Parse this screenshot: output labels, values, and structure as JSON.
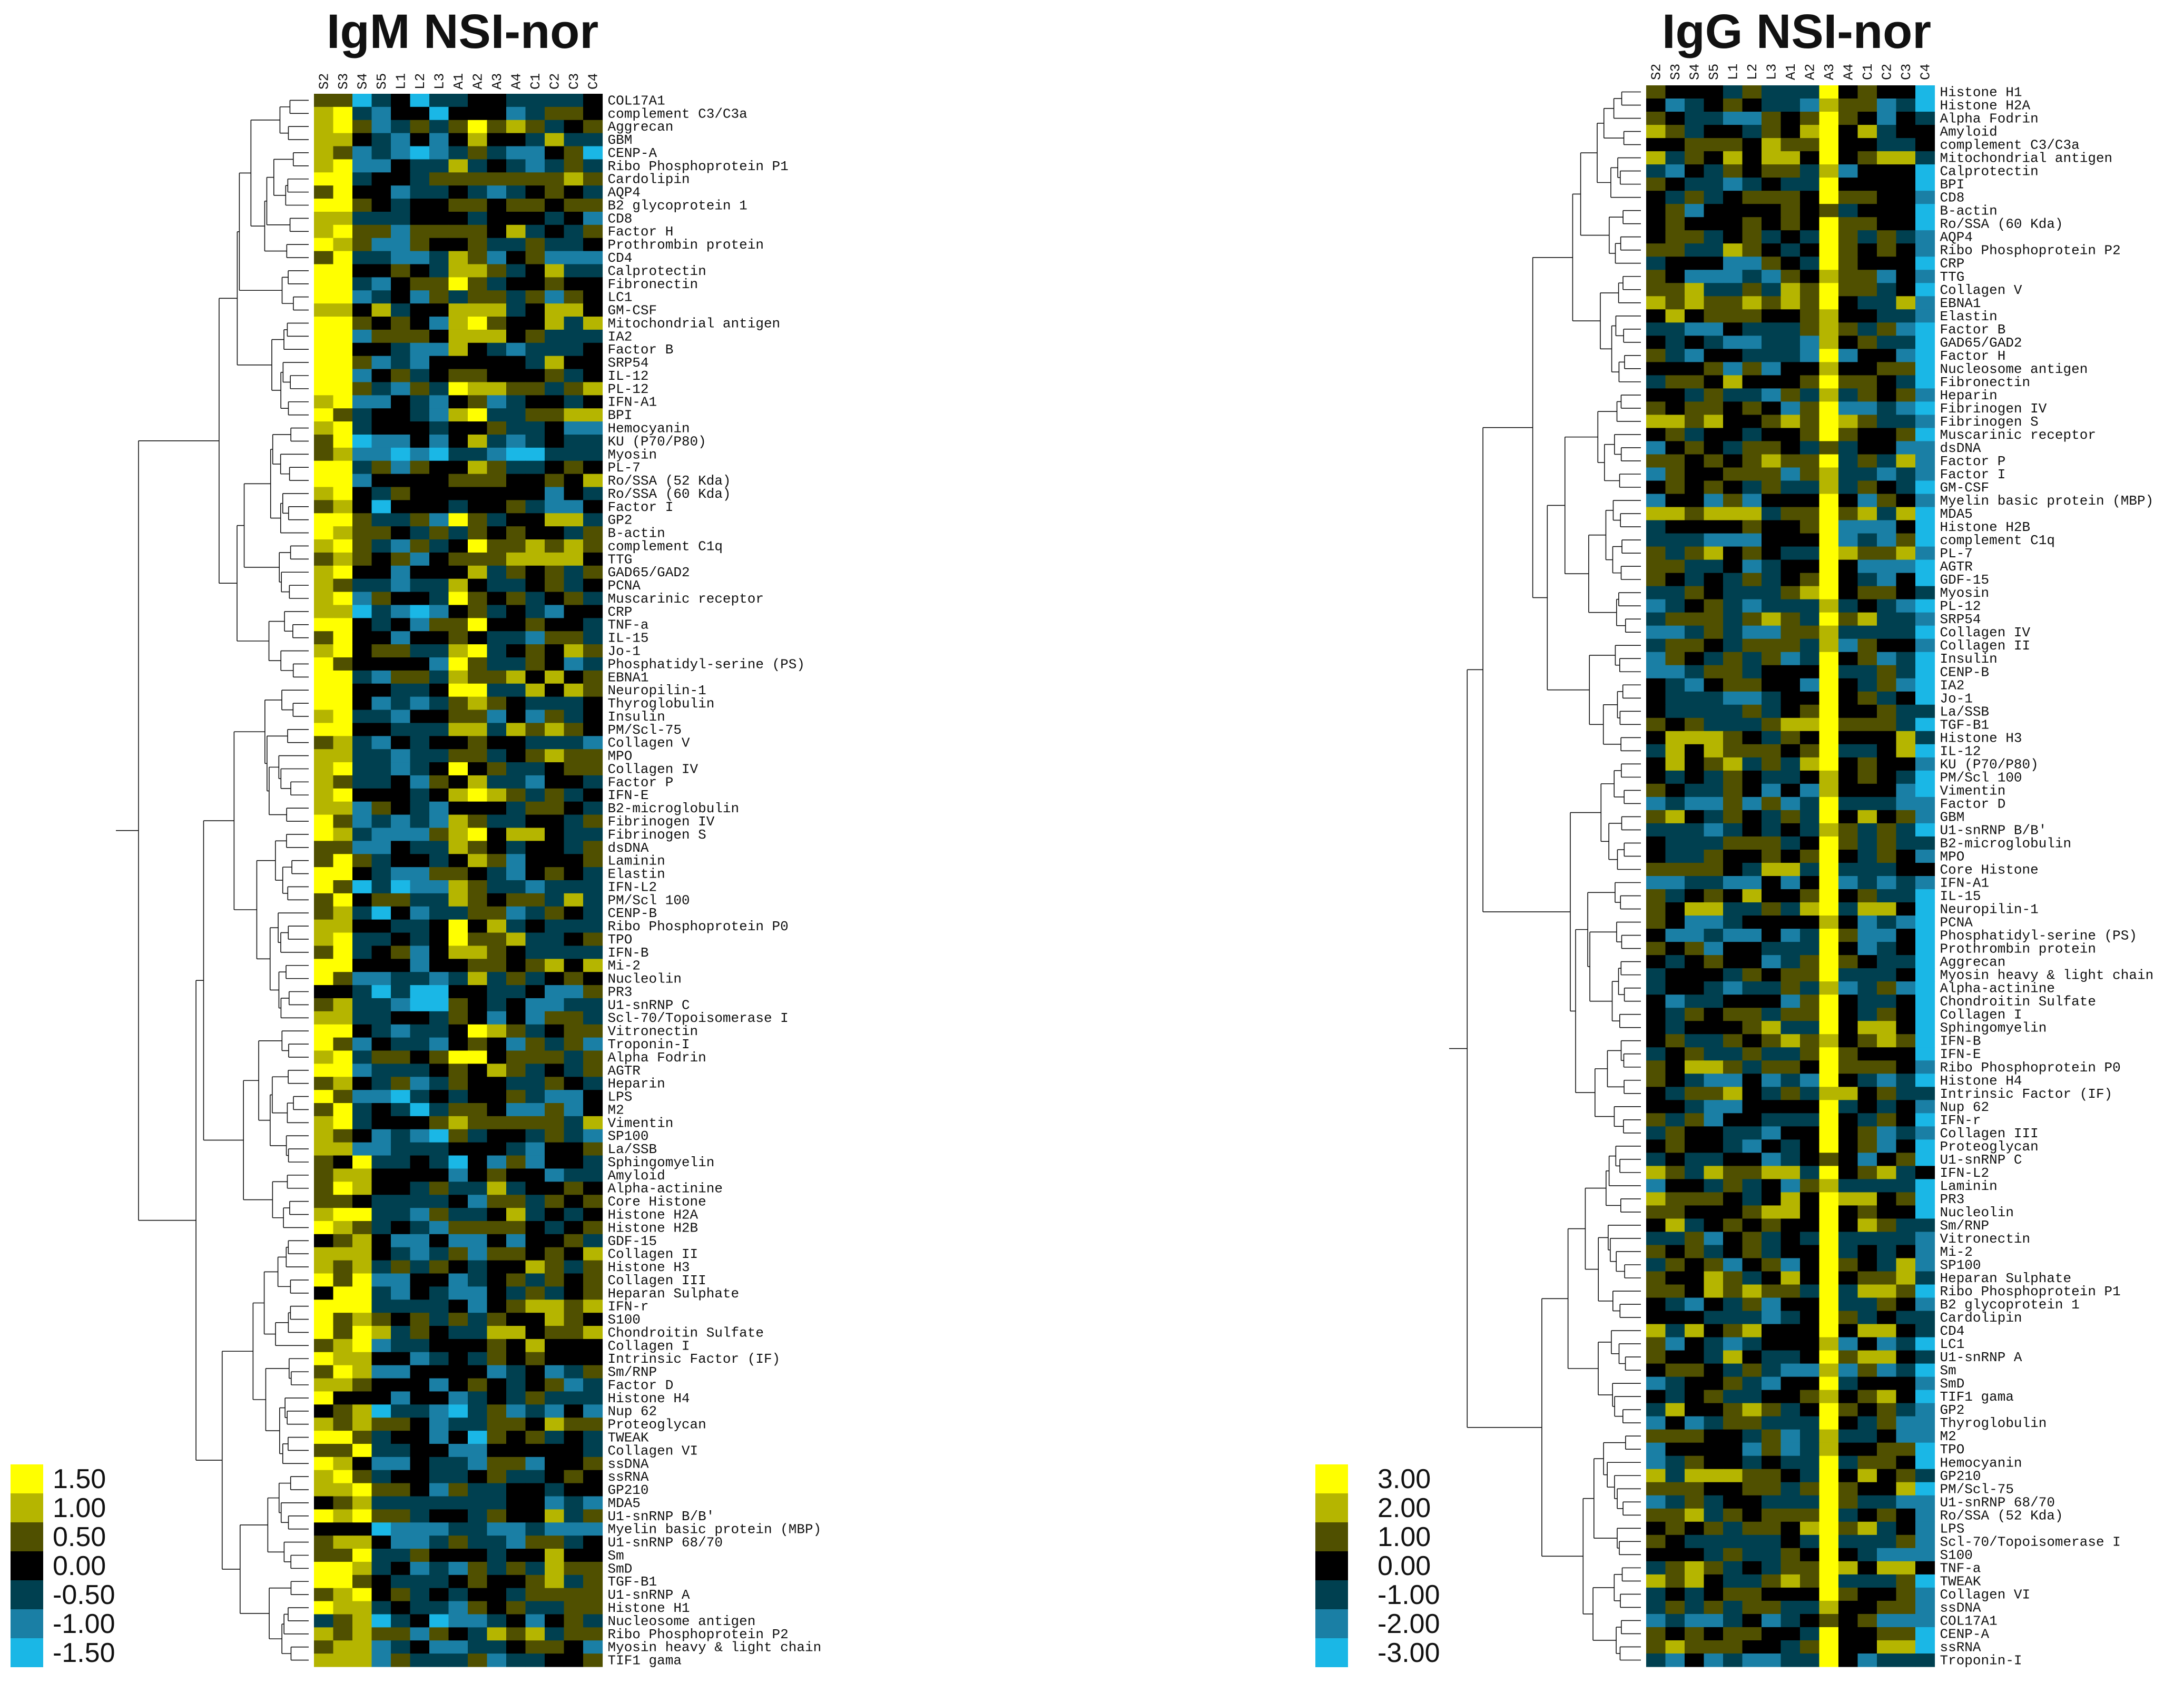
{
  "colors": {
    "scale": [
      "#ffff00",
      "#b5b500",
      "#505000",
      "#000000",
      "#004050",
      "#1a7fa5",
      "#1ab7e6"
    ],
    "text": "#111111"
  },
  "chart_data": [
    {
      "type": "heatmap",
      "title": "IgM NSI-nor",
      "samples": [
        "S2",
        "S3",
        "S4",
        "S5",
        "L1",
        "L2",
        "L3",
        "A1",
        "A2",
        "A3",
        "A4",
        "C1",
        "C2",
        "C3",
        "C4"
      ],
      "legend": [
        "1.50",
        "1.00",
        "0.50",
        "0.00",
        "-0.50",
        "-1.00",
        "-1.50"
      ],
      "vmin": -1.5,
      "vmax": 1.5,
      "rows": [
        "COL17A1",
        "complement C3/C3a",
        "Aggrecan",
        "GBM",
        "CENP-A",
        "Ribo Phosphoprotein P1",
        "Cardolipin",
        "AQP4",
        "B2 glycoprotein 1",
        "CD8",
        "Factor H",
        "Prothrombin protein",
        "CD4",
        "Calprotectin",
        "Fibronectin",
        "LC1",
        "GM-CSF",
        "Mitochondrial antigen",
        "IA2",
        "Factor B",
        "SRP54",
        "IL-12",
        "PL-12",
        "IFN-A1",
        "BPI",
        "Hemocyanin",
        "KU (P70/P80)",
        "Myosin",
        "PL-7",
        "Ro/SSA (52 Kda)",
        "Ro/SSA (60 Kda)",
        "Factor I",
        "GP2",
        "B-actin",
        "complement C1q",
        "TTG",
        "GAD65/GAD2",
        "PCNA",
        "Muscarinic receptor",
        "CRP",
        "TNF-a",
        "IL-15",
        "Jo-1",
        "Phosphatidyl-serine (PS)",
        "EBNA1",
        "Neuropilin-1",
        "Thyroglobulin",
        "Insulin",
        "PM/Scl-75",
        "Collagen V",
        "MPO",
        "Collagen IV",
        "Factor P",
        "IFN-E",
        "B2-microglobulin",
        "Fibrinogen IV",
        "Fibrinogen S",
        "dsDNA",
        "Laminin",
        "Elastin",
        "IFN-L2",
        "PM/Scl 100",
        "CENP-B",
        "Ribo Phosphoprotein P0",
        "TPO",
        "IFN-B",
        "Mi-2",
        "Nucleolin",
        "PR3",
        "U1-snRNP C",
        "Scl-70/Topoisomerase I",
        "Vitronectin",
        "Troponin-I",
        "Alpha Fodrin",
        "AGTR",
        "Heparin",
        "LPS",
        "M2",
        "Vimentin",
        "SP100",
        "La/SSB",
        "Sphingomyelin",
        "Amyloid",
        "Alpha-actinine",
        "Core Histone",
        "Histone H2A",
        "Histone H2B",
        "GDF-15",
        "Collagen II",
        "Histone H3",
        "Collagen III",
        "Heparan Sulphate",
        "IFN-r",
        "S100",
        "Chondroitin Sulfate",
        "Collagen I",
        "Intrinsic Factor (IF)",
        "Sm/RNP",
        "Factor D",
        "Histone H4",
        "Nup 62",
        "Proteoglycan",
        "TWEAK",
        "Collagen VI",
        "ssDNA",
        "ssRNA",
        "GP210",
        "MDA5",
        "U1-snRNP B/B'",
        "Myelin basic protein (MBP)",
        "U1-snRNP 68/70",
        "Sm",
        "SmD",
        "TGF-B1",
        "U1-snRNP A",
        "Histone H1",
        "Nucleosome antigen",
        "Ribo Phosphoprotein P2",
        "Myosin heavy & light chain",
        "TIF1 gama"
      ]
    },
    {
      "type": "heatmap",
      "title": "IgG NSI-nor",
      "samples": [
        "S2",
        "S3",
        "S4",
        "S5",
        "L1",
        "L2",
        "L3",
        "A1",
        "A2",
        "A3",
        "A4",
        "C1",
        "C2",
        "C3",
        "C4"
      ],
      "legend": [
        "3.00",
        "2.00",
        "1.00",
        "0.00",
        "-1.00",
        "-2.00",
        "-3.00"
      ],
      "vmin": -3,
      "vmax": 3,
      "rows": [
        "Histone H1",
        "Histone H2A",
        "Alpha Fodrin",
        "Amyloid",
        "complement C3/C3a",
        "Mitochondrial antigen",
        "Calprotectin",
        "BPI",
        "CD8",
        "B-actin",
        "Ro/SSA (60 Kda)",
        "AQP4",
        "Ribo Phosphoprotein P2",
        "CRP",
        "TTG",
        "Collagen V",
        "EBNA1",
        "Elastin",
        "Factor B",
        "GAD65/GAD2",
        "Factor H",
        "Nucleosome antigen",
        "Fibronectin",
        "Heparin",
        "Fibrinogen IV",
        "Fibrinogen S",
        "Muscarinic receptor",
        "dsDNA",
        "Factor P",
        "Factor I",
        "GM-CSF",
        "Myelin basic protein (MBP)",
        "MDA5",
        "Histone H2B",
        "complement C1q",
        "PL-7",
        "AGTR",
        "GDF-15",
        "Myosin",
        "PL-12",
        "SRP54",
        "Collagen IV",
        "Collagen II",
        "Insulin",
        "CENP-B",
        "IA2",
        "Jo-1",
        "La/SSB",
        "TGF-B1",
        "Histone H3",
        "IL-12",
        "KU (P70/P80)",
        "PM/Scl 100",
        "Vimentin",
        "Factor D",
        "GBM",
        "U1-snRNP B/B'",
        "B2-microglobulin",
        "MPO",
        "Core Histone",
        "IFN-A1",
        "IL-15",
        "Neuropilin-1",
        "PCNA",
        "Phosphatidyl-serine (PS)",
        "Prothrombin protein",
        "Aggrecan",
        "Myosin heavy & light chain",
        "Alpha-actinine",
        "Chondroitin Sulfate",
        "Collagen I",
        "Sphingomyelin",
        "IFN-B",
        "IFN-E",
        "Ribo Phosphoprotein P0",
        "Histone H4",
        "Intrinsic Factor (IF)",
        "Nup 62",
        "IFN-r",
        "Collagen III",
        "Proteoglycan",
        "U1-snRNP C",
        "IFN-L2",
        "Laminin",
        "PR3",
        "Nucleolin",
        "Sm/RNP",
        "Vitronectin",
        "Mi-2",
        "SP100",
        "Heparan Sulphate",
        "Ribo Phosphoprotein P1",
        "B2 glycoprotein 1",
        "Cardolipin",
        "CD4",
        "LC1",
        "U1-snRNP A",
        "Sm",
        "SmD",
        "TIF1 gama",
        "GP2",
        "Thyroglobulin",
        "M2",
        "TPO",
        "Hemocyanin",
        "GP210",
        "PM/Scl-75",
        "U1-snRNP 68/70",
        "Ro/SSA (52 Kda)",
        "LPS",
        "Scl-70/Topoisomerase I",
        "S100",
        "TNF-a",
        "TWEAK",
        "Collagen VI",
        "ssDNA",
        "COL17A1",
        "CENP-A",
        "ssRNA",
        "Troponin-I"
      ]
    }
  ]
}
